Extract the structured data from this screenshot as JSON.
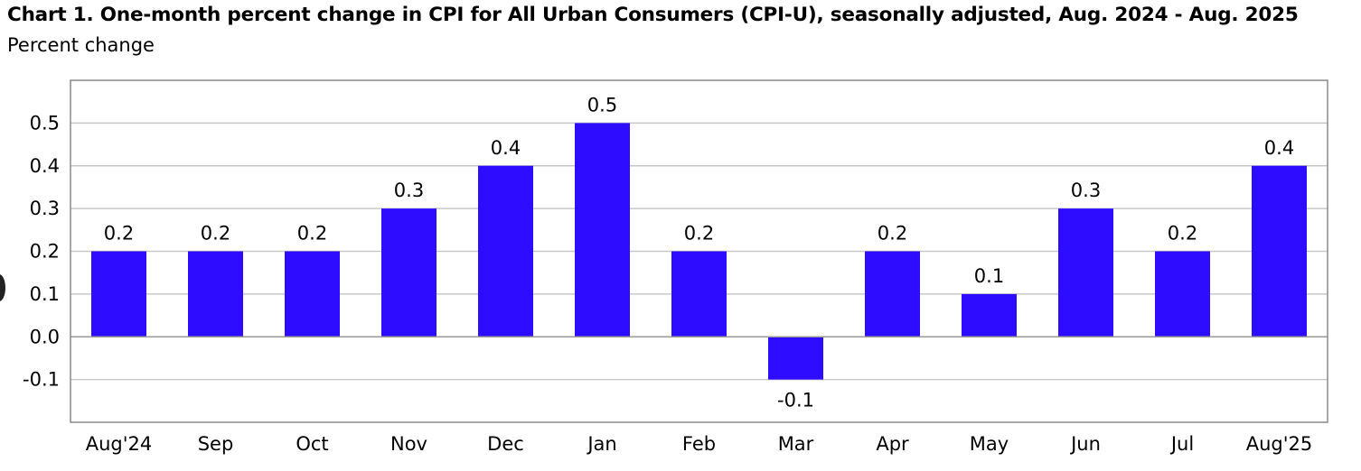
{
  "title": "Chart 1. One-month percent change in CPI for All Urban Consumers (CPI-U), seasonally adjusted, Aug. 2024 - Aug. 2025",
  "subtitle": "Percent change",
  "colors": {
    "bar": "#2d0cff",
    "grid": "#c8c8c8",
    "frame": "#8a8a8a"
  },
  "chart_data": {
    "type": "bar",
    "title": "Chart 1. One-month percent change in CPI for All Urban Consumers (CPI-U), seasonally adjusted, Aug. 2024 - Aug. 2025",
    "ylabel": "Percent change",
    "xlabel": "",
    "categories": [
      "Aug'24",
      "Sep",
      "Oct",
      "Nov",
      "Dec",
      "Jan",
      "Feb",
      "Mar",
      "Apr",
      "May",
      "Jun",
      "Jul",
      "Aug'25"
    ],
    "values": [
      0.2,
      0.2,
      0.2,
      0.3,
      0.4,
      0.5,
      0.2,
      -0.1,
      0.2,
      0.1,
      0.3,
      0.2,
      0.4
    ],
    "data_labels": [
      "0.2",
      "0.2",
      "0.2",
      "0.3",
      "0.4",
      "0.5",
      "0.2",
      "-0.1",
      "0.2",
      "0.1",
      "0.3",
      "0.2",
      "0.4"
    ],
    "ylim": [
      -0.2,
      0.6
    ],
    "yticks": [
      0.5,
      0.4,
      0.3,
      0.2,
      0.1,
      0.0,
      -0.1
    ],
    "ytick_labels": [
      "0.5",
      "0.4",
      "0.3",
      "0.2",
      "0.1",
      "0.0",
      "-0.1"
    ],
    "grid": true,
    "legend": "none"
  }
}
